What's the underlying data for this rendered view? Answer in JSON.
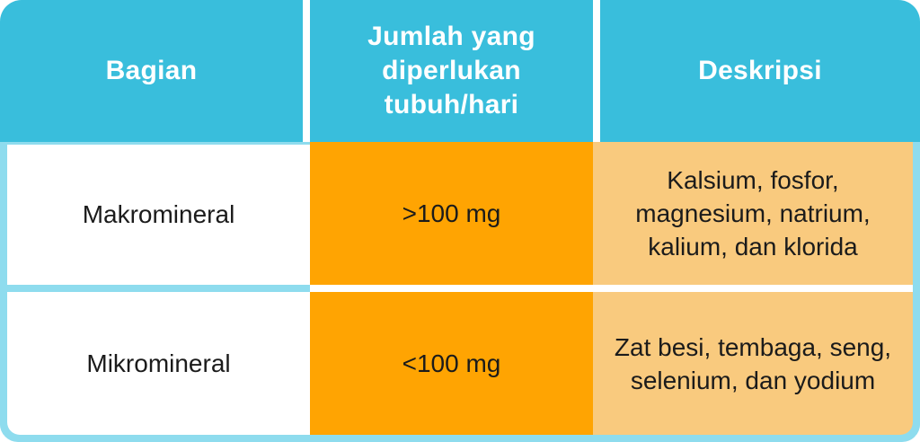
{
  "table": {
    "columns": [
      {
        "header": "Bagian"
      },
      {
        "header": "Jumlah yang diperlukan tubuh/hari"
      },
      {
        "header": "Deskripsi"
      }
    ],
    "rows": [
      {
        "bagian": "Makromineral",
        "jumlah": ">100 mg",
        "deskripsi": "Kalsium, fosfor, magnesium, natrium, kalium, dan klorida"
      },
      {
        "bagian": "Mikromineral",
        "jumlah": "<100 mg",
        "deskripsi": "Zat besi, tembaga, seng, selenium, dan yodium"
      }
    ]
  },
  "colors": {
    "header_cyan": "#39BEDC",
    "frame_light_cyan": "#8EDCEE",
    "orange": "#FFA402",
    "light_orange": "#F9CA7E",
    "header_text": "#FFFFFF",
    "body_text": "#1B1B1B",
    "gap_white": "#FFFFFF"
  },
  "chart_data": {
    "type": "table",
    "title": "",
    "columns": [
      "Bagian",
      "Jumlah yang diperlukan tubuh/hari",
      "Deskripsi"
    ],
    "rows": [
      [
        "Makromineral",
        ">100 mg",
        "Kalsium, fosfor, magnesium, natrium, kalium, dan klorida"
      ],
      [
        "Mikromineral",
        "<100 mg",
        "Zat besi, tembaga, seng, selenium, dan yodium"
      ]
    ],
    "layout_hints": {
      "header_background": "#39BEDC",
      "row_backgrounds_by_column": [
        "#FFFFFF",
        "#FFA402",
        "#F9CA7E"
      ],
      "outer_frame": "#8EDCEE",
      "rounded_corners": true
    }
  }
}
